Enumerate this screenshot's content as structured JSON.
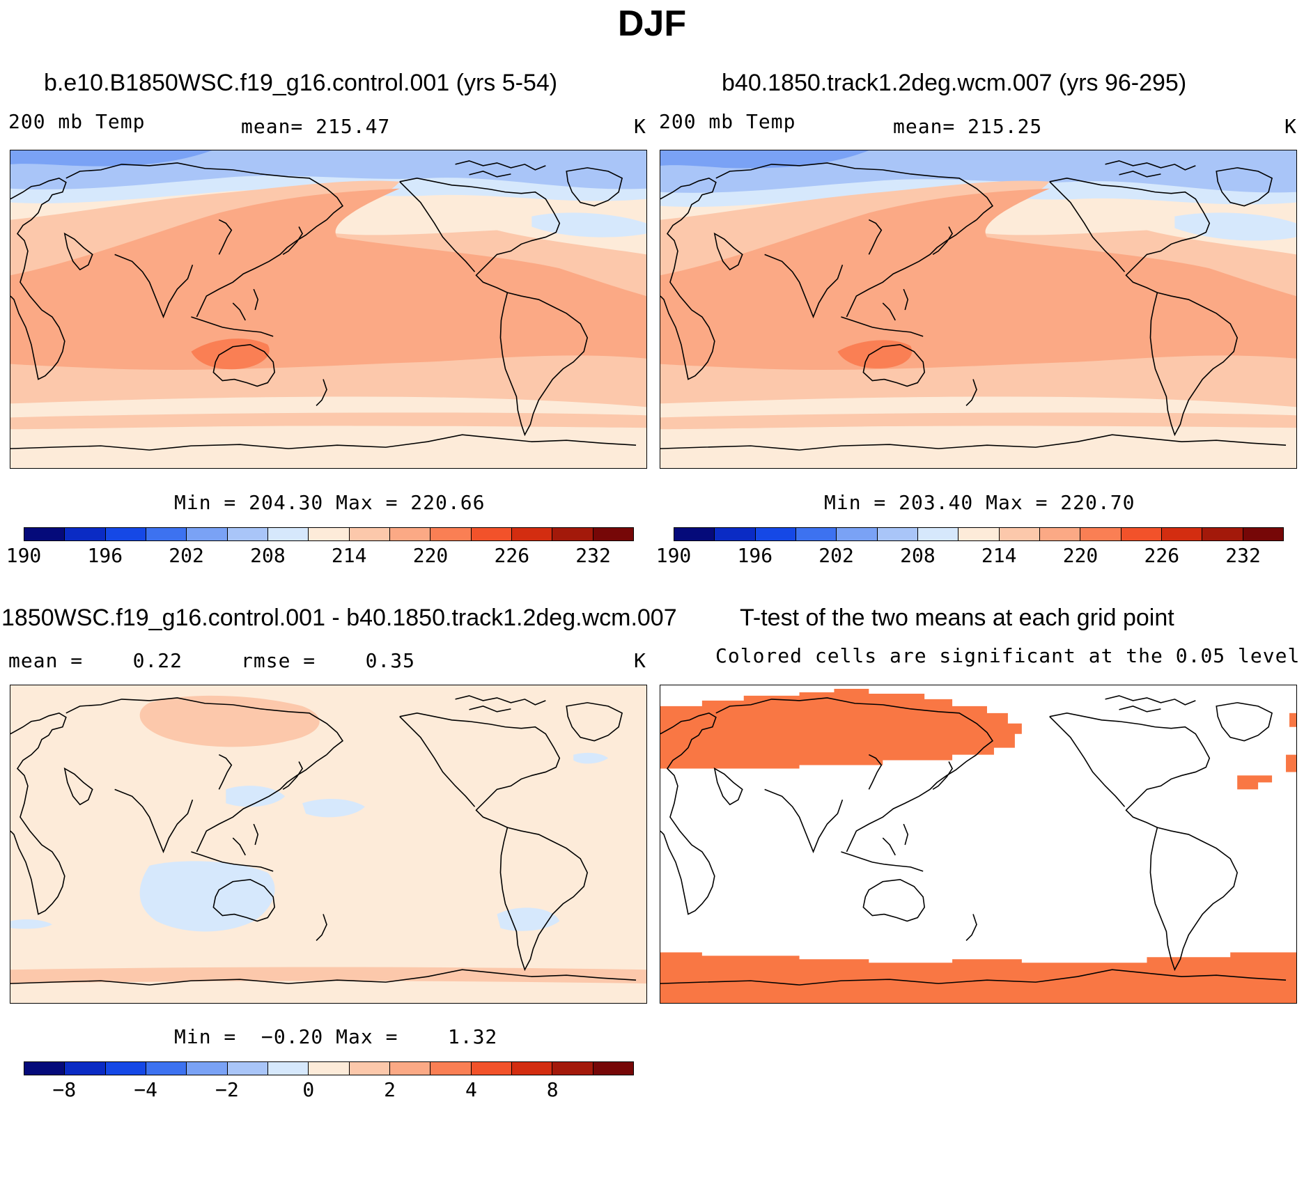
{
  "figure_title": "DJF",
  "panels": {
    "p1": {
      "title": "b.e10.B1850WSC.f19_g16.control.001 (yrs 5-54)",
      "variable": "200 mb Temp",
      "mean_text": "mean= 215.47",
      "units": "K",
      "minmax_text": "Min = 204.30 Max = 220.66",
      "mean_value": 215.47,
      "min_value": 204.3,
      "max_value": 220.66
    },
    "p2": {
      "title": "b40.1850.track1.2deg.wcm.007 (yrs 96-295)",
      "variable": "200 mb Temp",
      "mean_text": "mean= 215.25",
      "units": "K",
      "minmax_text": "Min = 203.40 Max = 220.70",
      "mean_value": 215.25,
      "min_value": 203.4,
      "max_value": 220.7
    },
    "p3": {
      "title": "1850WSC.f19_g16.control.001 - b40.1850.track1.2deg.wcm.007",
      "mean_text": "mean =    0.22",
      "rmse_text": "rmse =    0.35",
      "units": "K",
      "minmax_text": "Min =  −0.20 Max =    1.32",
      "mean_value": 0.22,
      "rmse_value": 0.35,
      "min_value": -0.2,
      "max_value": 1.32
    },
    "p4": {
      "title": "T-test of the two means at each grid point",
      "subtitle": "Colored cells are significant at the 0.05 level"
    }
  },
  "colorbars": {
    "temp": {
      "labels": [
        "190",
        "196",
        "202",
        "208",
        "214",
        "220",
        "226",
        "232"
      ],
      "colors": [
        "#050a7a",
        "#0a2bc4",
        "#1548e6",
        "#3d72f0",
        "#7aa2f5",
        "#a9c5f8",
        "#d6e8fc",
        "#fdebd9",
        "#fcc8ab",
        "#fba985",
        "#fa7f54",
        "#f2522a",
        "#d32d10",
        "#a3190a",
        "#760707"
      ]
    },
    "diff": {
      "labels": [
        "−8",
        "−4",
        "−2",
        "0",
        "2",
        "4",
        "8"
      ],
      "colors": [
        "#050a7a",
        "#0a2bc4",
        "#1548e6",
        "#3d72f0",
        "#7aa2f5",
        "#a9c5f8",
        "#d6e8fc",
        "#fdebd9",
        "#fcc8ab",
        "#fba985",
        "#fa7f54",
        "#f2522a",
        "#d32d10",
        "#a3190a",
        "#760707"
      ]
    }
  },
  "significance_color": "#f97744"
}
